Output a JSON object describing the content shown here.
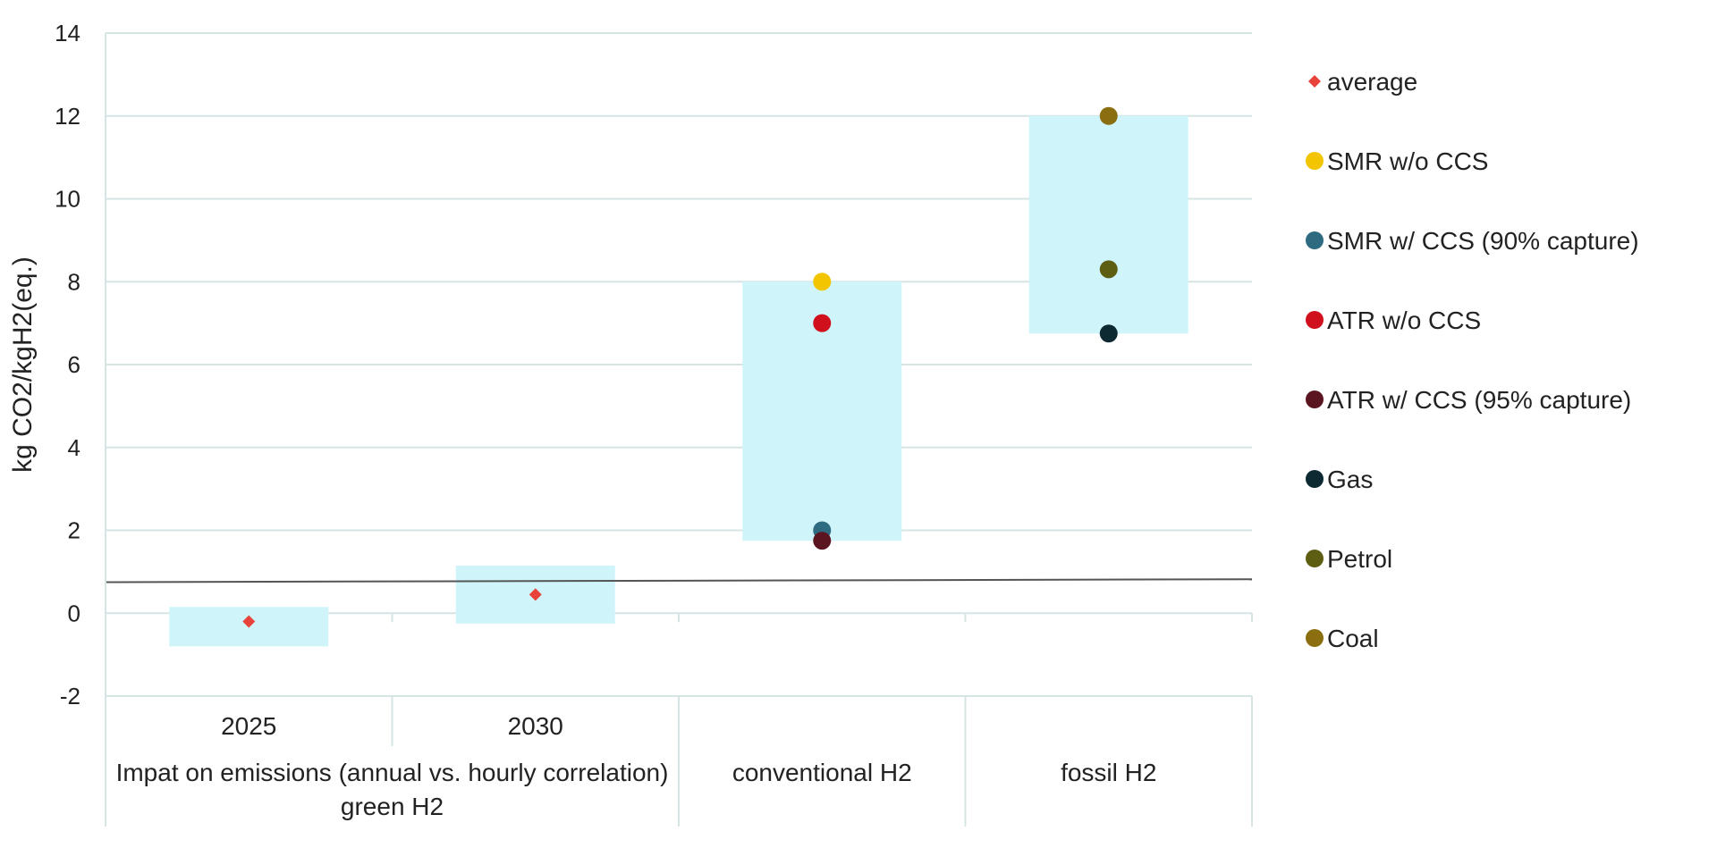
{
  "chart_data": {
    "type": "scatter",
    "title": "",
    "ylabel": "kg CO2/kgH2(eq.)",
    "ylim": [
      -2,
      14
    ],
    "yticks": [
      -2,
      0,
      2,
      4,
      6,
      8,
      10,
      12,
      14
    ],
    "grid": true,
    "legend_position": "right",
    "categories": [
      {
        "id": "c2025",
        "label": "2025",
        "group": "Impat on emissions (annual vs. hourly correlation) green H2"
      },
      {
        "id": "c2030",
        "label": "2030",
        "group": "Impat on emissions (annual vs. hourly correlation) green H2"
      },
      {
        "id": "conv",
        "label": "",
        "group": "conventional H2"
      },
      {
        "id": "fossil",
        "label": "",
        "group": "fossil H2"
      }
    ],
    "groups": [
      "Impat on emissions (annual vs. hourly correlation) green H2",
      "conventional H2",
      "fossil H2"
    ],
    "ranges": [
      {
        "category": "c2025",
        "low": -0.8,
        "high": 0.15
      },
      {
        "category": "c2030",
        "low": -0.25,
        "high": 1.15
      },
      {
        "category": "conv",
        "low": 1.75,
        "high": 8.0
      },
      {
        "category": "fossil",
        "low": 6.75,
        "high": 12.0
      }
    ],
    "reference_line": {
      "start": 0.75,
      "end": 0.82
    },
    "series": [
      {
        "name": "average",
        "marker": "diamond",
        "color": "#e8433a",
        "points": [
          {
            "category": "c2025",
            "y": -0.2
          },
          {
            "category": "c2030",
            "y": 0.45
          }
        ]
      },
      {
        "name": "SMR w/o CCS",
        "marker": "circle",
        "color": "#f2c500",
        "points": [
          {
            "category": "conv",
            "y": 8.0
          }
        ]
      },
      {
        "name": "SMR w/ CCS (90% capture)",
        "marker": "circle",
        "color": "#2e6b80",
        "points": [
          {
            "category": "conv",
            "y": 2.0
          }
        ]
      },
      {
        "name": "ATR w/o CCS",
        "marker": "circle",
        "color": "#d0101c",
        "points": [
          {
            "category": "conv",
            "y": 7.0
          }
        ]
      },
      {
        "name": "ATR w/ CCS (95% capture)",
        "marker": "circle",
        "color": "#5a1520",
        "points": [
          {
            "category": "conv",
            "y": 1.75
          }
        ]
      },
      {
        "name": "Gas",
        "marker": "circle",
        "color": "#0d2a33",
        "points": [
          {
            "category": "fossil",
            "y": 6.75
          }
        ]
      },
      {
        "name": "Petrol",
        "marker": "circle",
        "color": "#5e5e12",
        "points": [
          {
            "category": "fossil",
            "y": 8.3
          }
        ]
      },
      {
        "name": "Coal",
        "marker": "circle",
        "color": "#8a6e10",
        "points": [
          {
            "category": "fossil",
            "y": 12.0
          }
        ]
      }
    ],
    "colors": {
      "range_fill": "#cff5fb",
      "grid": "#d7e4e4",
      "reference_line": "#555555",
      "text": "#222222"
    }
  }
}
